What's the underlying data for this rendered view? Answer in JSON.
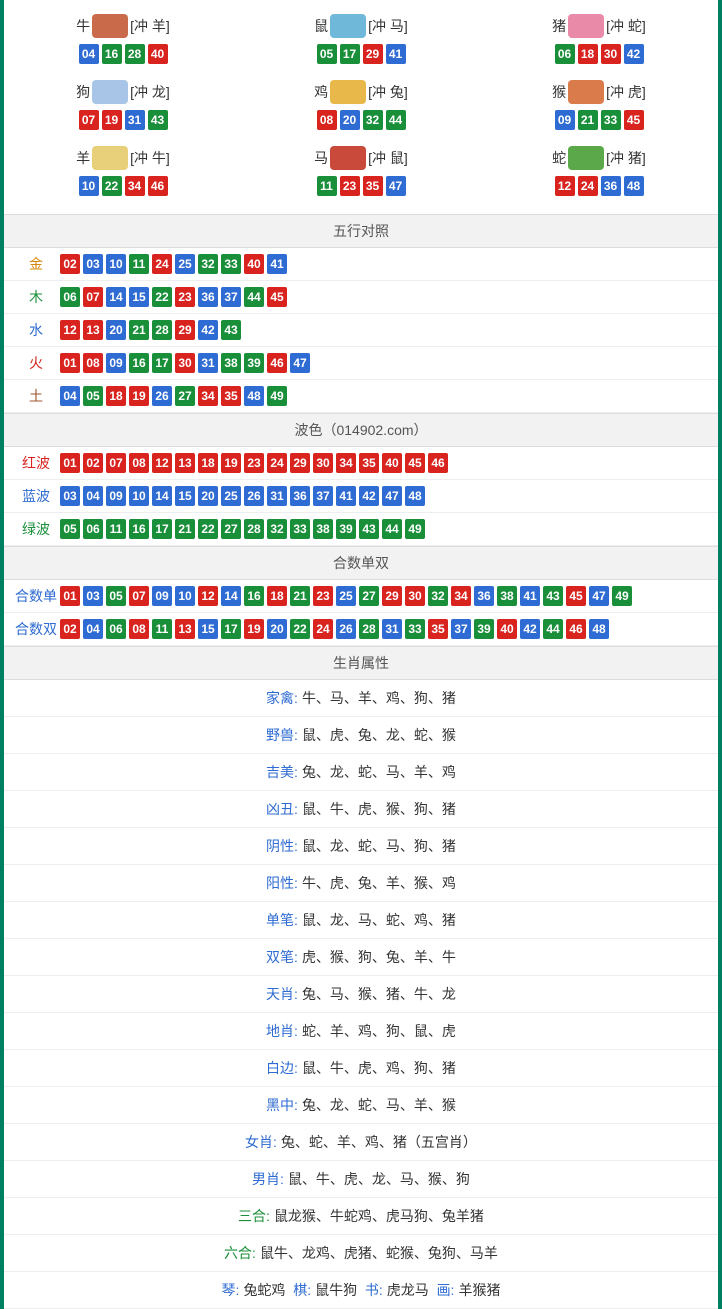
{
  "colors": {
    "red": "#d9231f",
    "blue": "#2e6bd2",
    "green": "#1a8f3a",
    "frame": "#008060"
  },
  "zodiac": [
    {
      "name": "牛",
      "chong": "[冲 羊]",
      "img": "#c96b4a",
      "balls": [
        [
          "04",
          "blue"
        ],
        [
          "16",
          "green"
        ],
        [
          "28",
          "green"
        ],
        [
          "40",
          "red"
        ]
      ]
    },
    {
      "name": "鼠",
      "chong": "[冲 马]",
      "img": "#6fb8d9",
      "balls": [
        [
          "05",
          "green"
        ],
        [
          "17",
          "green"
        ],
        [
          "29",
          "red"
        ],
        [
          "41",
          "blue"
        ]
      ]
    },
    {
      "name": "猪",
      "chong": "[冲 蛇]",
      "img": "#e88aa8",
      "balls": [
        [
          "06",
          "green"
        ],
        [
          "18",
          "red"
        ],
        [
          "30",
          "red"
        ],
        [
          "42",
          "blue"
        ]
      ]
    },
    {
      "name": "狗",
      "chong": "[冲 龙]",
      "img": "#a8c5e8",
      "balls": [
        [
          "07",
          "red"
        ],
        [
          "19",
          "red"
        ],
        [
          "31",
          "blue"
        ],
        [
          "43",
          "green"
        ]
      ]
    },
    {
      "name": "鸡",
      "chong": "[冲 兔]",
      "img": "#e8b84a",
      "balls": [
        [
          "08",
          "red"
        ],
        [
          "20",
          "blue"
        ],
        [
          "32",
          "green"
        ],
        [
          "44",
          "green"
        ]
      ]
    },
    {
      "name": "猴",
      "chong": "[冲 虎]",
      "img": "#d97b4a",
      "balls": [
        [
          "09",
          "blue"
        ],
        [
          "21",
          "green"
        ],
        [
          "33",
          "green"
        ],
        [
          "45",
          "red"
        ]
      ]
    },
    {
      "name": "羊",
      "chong": "[冲 牛]",
      "img": "#e8d07a",
      "balls": [
        [
          "10",
          "blue"
        ],
        [
          "22",
          "green"
        ],
        [
          "34",
          "red"
        ],
        [
          "46",
          "red"
        ]
      ]
    },
    {
      "name": "马",
      "chong": "[冲 鼠]",
      "img": "#c94a3a",
      "balls": [
        [
          "11",
          "green"
        ],
        [
          "23",
          "red"
        ],
        [
          "35",
          "red"
        ],
        [
          "47",
          "blue"
        ]
      ]
    },
    {
      "name": "蛇",
      "chong": "[冲 猪]",
      "img": "#5aa84a",
      "balls": [
        [
          "12",
          "red"
        ],
        [
          "24",
          "red"
        ],
        [
          "36",
          "blue"
        ],
        [
          "48",
          "blue"
        ]
      ]
    }
  ],
  "sections": {
    "wuxing_title": "五行对照",
    "bose_title": "波色（014902.com）",
    "heshu_title": "合数单双",
    "shengxiao_title": "生肖属性"
  },
  "wuxing": [
    {
      "label": "金",
      "cls": "lbl-gold",
      "balls": [
        [
          "02",
          "red"
        ],
        [
          "03",
          "blue"
        ],
        [
          "10",
          "blue"
        ],
        [
          "11",
          "green"
        ],
        [
          "24",
          "red"
        ],
        [
          "25",
          "blue"
        ],
        [
          "32",
          "green"
        ],
        [
          "33",
          "green"
        ],
        [
          "40",
          "red"
        ],
        [
          "41",
          "blue"
        ]
      ]
    },
    {
      "label": "木",
      "cls": "lbl-wood",
      "balls": [
        [
          "06",
          "green"
        ],
        [
          "07",
          "red"
        ],
        [
          "14",
          "blue"
        ],
        [
          "15",
          "blue"
        ],
        [
          "22",
          "green"
        ],
        [
          "23",
          "red"
        ],
        [
          "36",
          "blue"
        ],
        [
          "37",
          "blue"
        ],
        [
          "44",
          "green"
        ],
        [
          "45",
          "red"
        ]
      ]
    },
    {
      "label": "水",
      "cls": "lbl-water",
      "balls": [
        [
          "12",
          "red"
        ],
        [
          "13",
          "red"
        ],
        [
          "20",
          "blue"
        ],
        [
          "21",
          "green"
        ],
        [
          "28",
          "green"
        ],
        [
          "29",
          "red"
        ],
        [
          "42",
          "blue"
        ],
        [
          "43",
          "green"
        ]
      ]
    },
    {
      "label": "火",
      "cls": "lbl-fire",
      "balls": [
        [
          "01",
          "red"
        ],
        [
          "08",
          "red"
        ],
        [
          "09",
          "blue"
        ],
        [
          "16",
          "green"
        ],
        [
          "17",
          "green"
        ],
        [
          "30",
          "red"
        ],
        [
          "31",
          "blue"
        ],
        [
          "38",
          "green"
        ],
        [
          "39",
          "green"
        ],
        [
          "46",
          "red"
        ],
        [
          "47",
          "blue"
        ]
      ]
    },
    {
      "label": "土",
      "cls": "lbl-earth",
      "balls": [
        [
          "04",
          "blue"
        ],
        [
          "05",
          "green"
        ],
        [
          "18",
          "red"
        ],
        [
          "19",
          "red"
        ],
        [
          "26",
          "blue"
        ],
        [
          "27",
          "green"
        ],
        [
          "34",
          "red"
        ],
        [
          "35",
          "red"
        ],
        [
          "48",
          "blue"
        ],
        [
          "49",
          "green"
        ]
      ]
    }
  ],
  "bose": [
    {
      "label": "红波",
      "cls": "lbl-red",
      "balls": [
        [
          "01",
          "red"
        ],
        [
          "02",
          "red"
        ],
        [
          "07",
          "red"
        ],
        [
          "08",
          "red"
        ],
        [
          "12",
          "red"
        ],
        [
          "13",
          "red"
        ],
        [
          "18",
          "red"
        ],
        [
          "19",
          "red"
        ],
        [
          "23",
          "red"
        ],
        [
          "24",
          "red"
        ],
        [
          "29",
          "red"
        ],
        [
          "30",
          "red"
        ],
        [
          "34",
          "red"
        ],
        [
          "35",
          "red"
        ],
        [
          "40",
          "red"
        ],
        [
          "45",
          "red"
        ],
        [
          "46",
          "red"
        ]
      ]
    },
    {
      "label": "蓝波",
      "cls": "lbl-blue",
      "balls": [
        [
          "03",
          "blue"
        ],
        [
          "04",
          "blue"
        ],
        [
          "09",
          "blue"
        ],
        [
          "10",
          "blue"
        ],
        [
          "14",
          "blue"
        ],
        [
          "15",
          "blue"
        ],
        [
          "20",
          "blue"
        ],
        [
          "25",
          "blue"
        ],
        [
          "26",
          "blue"
        ],
        [
          "31",
          "blue"
        ],
        [
          "36",
          "blue"
        ],
        [
          "37",
          "blue"
        ],
        [
          "41",
          "blue"
        ],
        [
          "42",
          "blue"
        ],
        [
          "47",
          "blue"
        ],
        [
          "48",
          "blue"
        ]
      ]
    },
    {
      "label": "绿波",
      "cls": "lbl-green",
      "balls": [
        [
          "05",
          "green"
        ],
        [
          "06",
          "green"
        ],
        [
          "11",
          "green"
        ],
        [
          "16",
          "green"
        ],
        [
          "17",
          "green"
        ],
        [
          "21",
          "green"
        ],
        [
          "22",
          "green"
        ],
        [
          "27",
          "green"
        ],
        [
          "28",
          "green"
        ],
        [
          "32",
          "green"
        ],
        [
          "33",
          "green"
        ],
        [
          "38",
          "green"
        ],
        [
          "39",
          "green"
        ],
        [
          "43",
          "green"
        ],
        [
          "44",
          "green"
        ],
        [
          "49",
          "green"
        ]
      ]
    }
  ],
  "heshu": [
    {
      "label": "合数单",
      "cls": "lbl-blue",
      "balls": [
        [
          "01",
          "red"
        ],
        [
          "03",
          "blue"
        ],
        [
          "05",
          "green"
        ],
        [
          "07",
          "red"
        ],
        [
          "09",
          "blue"
        ],
        [
          "10",
          "blue"
        ],
        [
          "12",
          "red"
        ],
        [
          "14",
          "blue"
        ],
        [
          "16",
          "green"
        ],
        [
          "18",
          "red"
        ],
        [
          "21",
          "green"
        ],
        [
          "23",
          "red"
        ],
        [
          "25",
          "blue"
        ],
        [
          "27",
          "green"
        ],
        [
          "29",
          "red"
        ],
        [
          "30",
          "red"
        ],
        [
          "32",
          "green"
        ],
        [
          "34",
          "red"
        ],
        [
          "36",
          "blue"
        ],
        [
          "38",
          "green"
        ],
        [
          "41",
          "blue"
        ],
        [
          "43",
          "green"
        ],
        [
          "45",
          "red"
        ],
        [
          "47",
          "blue"
        ],
        [
          "49",
          "green"
        ]
      ]
    },
    {
      "label": "合数双",
      "cls": "lbl-blue",
      "balls": [
        [
          "02",
          "red"
        ],
        [
          "04",
          "blue"
        ],
        [
          "06",
          "green"
        ],
        [
          "08",
          "red"
        ],
        [
          "11",
          "green"
        ],
        [
          "13",
          "red"
        ],
        [
          "15",
          "blue"
        ],
        [
          "17",
          "green"
        ],
        [
          "19",
          "red"
        ],
        [
          "20",
          "blue"
        ],
        [
          "22",
          "green"
        ],
        [
          "24",
          "red"
        ],
        [
          "26",
          "blue"
        ],
        [
          "28",
          "green"
        ],
        [
          "31",
          "blue"
        ],
        [
          "33",
          "green"
        ],
        [
          "35",
          "red"
        ],
        [
          "37",
          "blue"
        ],
        [
          "39",
          "green"
        ],
        [
          "40",
          "red"
        ],
        [
          "42",
          "blue"
        ],
        [
          "44",
          "green"
        ],
        [
          "46",
          "red"
        ],
        [
          "48",
          "blue"
        ]
      ]
    }
  ],
  "attributes": [
    {
      "label": "家禽:",
      "value": "牛、马、羊、鸡、狗、猪"
    },
    {
      "label": "野兽:",
      "value": "鼠、虎、兔、龙、蛇、猴"
    },
    {
      "label": "吉美:",
      "value": "兔、龙、蛇、马、羊、鸡"
    },
    {
      "label": "凶丑:",
      "value": "鼠、牛、虎、猴、狗、猪"
    },
    {
      "label": "阴性:",
      "value": "鼠、龙、蛇、马、狗、猪"
    },
    {
      "label": "阳性:",
      "value": "牛、虎、兔、羊、猴、鸡"
    },
    {
      "label": "单笔:",
      "value": "鼠、龙、马、蛇、鸡、猪"
    },
    {
      "label": "双笔:",
      "value": "虎、猴、狗、兔、羊、牛"
    },
    {
      "label": "天肖:",
      "value": "兔、马、猴、猪、牛、龙"
    },
    {
      "label": "地肖:",
      "value": "蛇、羊、鸡、狗、鼠、虎"
    },
    {
      "label": "白边:",
      "value": "鼠、牛、虎、鸡、狗、猪"
    },
    {
      "label": "黑中:",
      "value": "兔、龙、蛇、马、羊、猴"
    },
    {
      "label": "女肖:",
      "value": "兔、蛇、羊、鸡、猪（五宫肖）"
    },
    {
      "label": "男肖:",
      "value": "鼠、牛、虎、龙、马、猴、狗"
    },
    {
      "label": "三合:",
      "value": "鼠龙猴、牛蛇鸡、虎马狗、兔羊猪",
      "green": true
    },
    {
      "label": "六合:",
      "value": "鼠牛、龙鸡、虎猪、蛇猴、兔狗、马羊",
      "green": true
    }
  ],
  "footer": {
    "parts": [
      {
        "label": "琴:",
        "value": "兔蛇鸡"
      },
      {
        "label": "棋:",
        "value": "鼠牛狗"
      },
      {
        "label": "书:",
        "value": "虎龙马"
      },
      {
        "label": "画:",
        "value": "羊猴猪"
      }
    ]
  }
}
